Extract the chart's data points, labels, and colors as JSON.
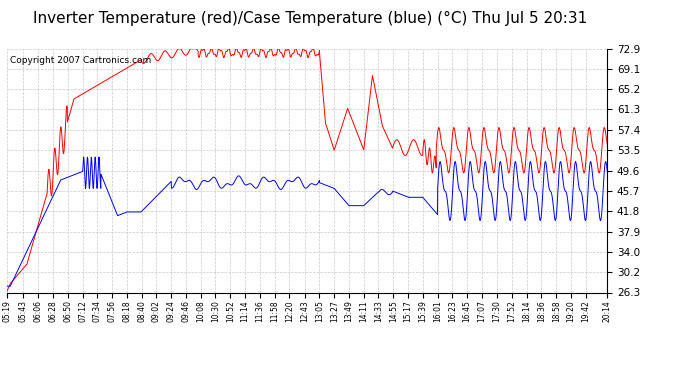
{
  "title": "Inverter Temperature (red)/Case Temperature (blue) (°C) Thu Jul 5 20:31",
  "copyright": "Copyright 2007 Cartronics.com",
  "y_ticks": [
    26.3,
    30.2,
    34.0,
    37.9,
    41.8,
    45.7,
    49.6,
    53.5,
    57.4,
    61.3,
    65.2,
    69.1,
    72.9
  ],
  "y_min": 26.3,
  "y_max": 72.9,
  "background_color": "#ffffff",
  "plot_bg_color": "#ffffff",
  "grid_color": "#c8c8c8",
  "red_color": "#ff0000",
  "blue_color": "#0000ff",
  "title_fontsize": 11,
  "copyright_fontsize": 6.5,
  "tick_labels": [
    "05:19",
    "05:43",
    "06:06",
    "06:28",
    "06:50",
    "07:12",
    "07:34",
    "07:56",
    "08:18",
    "08:40",
    "09:02",
    "09:24",
    "09:46",
    "10:08",
    "10:30",
    "10:52",
    "11:14",
    "11:36",
    "11:58",
    "12:20",
    "12:43",
    "13:05",
    "13:27",
    "13:49",
    "14:11",
    "14:33",
    "14:55",
    "15:17",
    "15:39",
    "16:01",
    "16:23",
    "16:45",
    "17:07",
    "17:30",
    "17:52",
    "18:14",
    "18:36",
    "18:58",
    "19:20",
    "19:42",
    "20:14"
  ]
}
